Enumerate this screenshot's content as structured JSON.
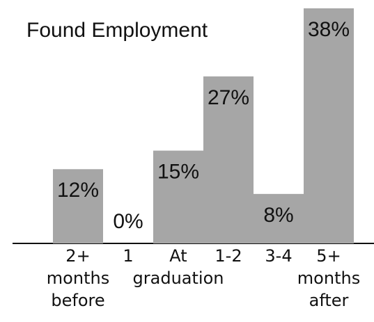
{
  "chart_data": {
    "type": "bar",
    "title": "Found Employment",
    "categories": [
      "2+\nmonths\nbefore",
      "1",
      "At\ngraduation",
      "1-2",
      "3-4",
      "5+\nmonths\nafter"
    ],
    "values": [
      12,
      0,
      15,
      27,
      8,
      38
    ],
    "value_labels": [
      "12%",
      "0%",
      "15%",
      "27%",
      "8%",
      "38%"
    ],
    "color": "#a6a6a6"
  }
}
